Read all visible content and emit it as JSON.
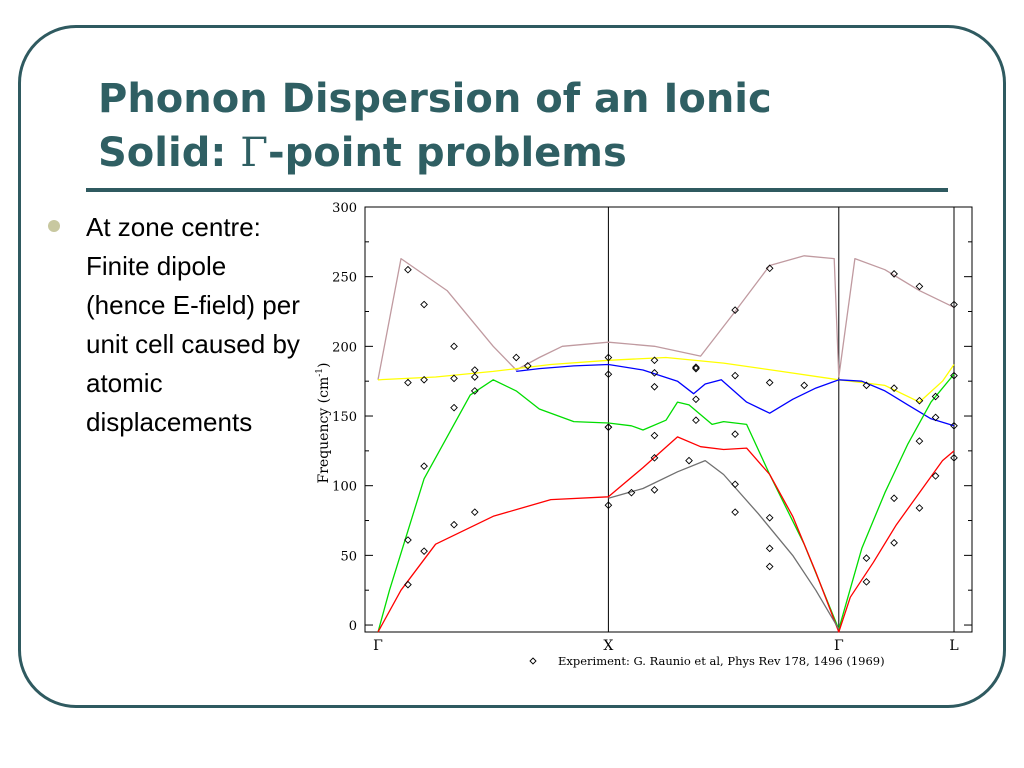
{
  "slide": {
    "title_line1": "Phonon Dispersion of an Ionic",
    "title_line2_pre": "Solid: ",
    "title_gamma": "Γ",
    "title_line2_post": "-point problems",
    "bullet": "At zone centre: Finite dipole (hence E-field) per unit cell caused by atomic displacements",
    "colors": {
      "title": "#2f5f63",
      "frame": "#2f5a60",
      "bullet_dot": "#c8c8a0"
    }
  },
  "chart_data": {
    "type": "line",
    "ylabel": "Frequency (cm",
    "ylabel_sup": "-1",
    "ylabel_close": ")",
    "ylim": [
      -5,
      300
    ],
    "yticks": [
      0,
      50,
      100,
      150,
      200,
      250,
      300
    ],
    "xlim": [
      0,
      2.5
    ],
    "kpoints": [
      {
        "label": "Γ",
        "x": 0.0
      },
      {
        "label": "X",
        "x": 1.0
      },
      {
        "label": "Γ",
        "x": 2.0
      },
      {
        "label": "L",
        "x": 2.5
      }
    ],
    "caption": "Experiment: G. Raunio et al, Phys Rev 178, 1496 (1969)",
    "series": [
      {
        "color": "#c09aa0",
        "x": [
          0,
          0.1,
          0.3,
          0.5,
          0.6,
          0.7,
          0.8,
          1.0,
          1.2,
          1.4,
          1.55,
          1.7,
          1.85,
          1.98,
          2.0,
          2.07,
          2.2,
          2.35,
          2.5
        ],
        "y": [
          176,
          263,
          240,
          200,
          183,
          192,
          200,
          203,
          200,
          193,
          225,
          258,
          265,
          263,
          178,
          263,
          255,
          240,
          228
        ]
      },
      {
        "color": "#ffff00",
        "x": [
          0,
          0.25,
          0.5,
          0.75,
          1.0,
          1.25,
          1.5,
          1.75,
          2.0,
          2.2,
          2.35,
          2.45,
          2.5
        ],
        "y": [
          176,
          178,
          182,
          187,
          190,
          192,
          188,
          182,
          176,
          172,
          160,
          175,
          187
        ]
      },
      {
        "color": "#0000ff",
        "x": [
          0.6,
          0.7,
          0.85,
          1.0,
          1.15,
          1.3,
          1.37,
          1.42,
          1.49,
          1.6,
          1.7,
          1.8,
          1.9,
          2.0,
          2.1,
          2.2,
          2.3,
          2.4,
          2.5
        ],
        "y": [
          182,
          184,
          186,
          187,
          183,
          175,
          166,
          173,
          176,
          160,
          152,
          162,
          170,
          176,
          175,
          168,
          158,
          148,
          143
        ]
      },
      {
        "color": "#00dd00",
        "x": [
          0,
          0.05,
          0.2,
          0.4,
          0.5,
          0.6,
          0.7,
          0.85,
          1.0,
          1.1,
          1.15,
          1.25,
          1.3,
          1.35,
          1.45,
          1.5,
          1.6,
          1.7,
          1.85,
          2.0,
          2.1,
          2.2,
          2.3,
          2.4,
          2.5
        ],
        "y": [
          -5,
          25,
          105,
          165,
          176,
          168,
          155,
          146,
          145,
          143,
          140,
          147,
          160,
          158,
          144,
          146,
          144,
          108,
          58,
          -3,
          55,
          95,
          130,
          160,
          180
        ]
      },
      {
        "color": "#ff0000",
        "x": [
          0,
          0.1,
          0.25,
          0.5,
          0.75,
          1.0,
          1.15,
          1.3,
          1.4,
          1.5,
          1.6,
          1.7,
          1.8,
          1.9,
          2.0,
          2.05,
          2.15,
          2.25,
          2.35,
          2.45,
          2.5
        ],
        "y": [
          -5,
          25,
          58,
          78,
          90,
          92,
          113,
          135,
          128,
          126,
          127,
          108,
          78,
          38,
          -5,
          20,
          45,
          72,
          95,
          118,
          125
        ]
      },
      {
        "color": "#707070",
        "x": [
          1.0,
          1.15,
          1.3,
          1.42,
          1.5,
          1.65,
          1.8,
          1.9,
          2.0
        ],
        "y": [
          91,
          98,
          110,
          118,
          108,
          80,
          50,
          25,
          -3
        ]
      }
    ],
    "experiment_points": [
      [
        0.13,
        255
      ],
      [
        0.2,
        230
      ],
      [
        0.33,
        200
      ],
      [
        0.42,
        183
      ],
      [
        0.6,
        192
      ],
      [
        0.65,
        186
      ],
      [
        0.13,
        174
      ],
      [
        0.2,
        176
      ],
      [
        0.33,
        177
      ],
      [
        0.42,
        178
      ],
      [
        0.13,
        61
      ],
      [
        0.2,
        114
      ],
      [
        0.33,
        156
      ],
      [
        0.42,
        168
      ],
      [
        0.13,
        29
      ],
      [
        0.2,
        53
      ],
      [
        0.33,
        72
      ],
      [
        0.42,
        81
      ],
      [
        1.0,
        192
      ],
      [
        1.0,
        180
      ],
      [
        1.0,
        142
      ],
      [
        1.0,
        142
      ],
      [
        1.0,
        86
      ],
      [
        1.1,
        95
      ],
      [
        1.2,
        97
      ],
      [
        1.2,
        120
      ],
      [
        1.2,
        136
      ],
      [
        1.2,
        171
      ],
      [
        1.2,
        181
      ],
      [
        1.2,
        190
      ],
      [
        1.35,
        118
      ],
      [
        1.38,
        147
      ],
      [
        1.38,
        162
      ],
      [
        1.38,
        184
      ],
      [
        1.38,
        185
      ],
      [
        1.55,
        226
      ],
      [
        1.55,
        179
      ],
      [
        1.55,
        137
      ],
      [
        1.55,
        101
      ],
      [
        1.55,
        81
      ],
      [
        1.7,
        256
      ],
      [
        1.7,
        174
      ],
      [
        1.7,
        77
      ],
      [
        1.7,
        55
      ],
      [
        1.7,
        42
      ],
      [
        1.85,
        172
      ],
      [
        2.12,
        172
      ],
      [
        2.12,
        48
      ],
      [
        2.12,
        31
      ],
      [
        2.24,
        252
      ],
      [
        2.24,
        170
      ],
      [
        2.24,
        91
      ],
      [
        2.24,
        59
      ],
      [
        2.35,
        243
      ],
      [
        2.35,
        161
      ],
      [
        2.35,
        132
      ],
      [
        2.35,
        84
      ],
      [
        2.42,
        164
      ],
      [
        2.42,
        149
      ],
      [
        2.42,
        107
      ],
      [
        2.5,
        230
      ],
      [
        2.5,
        179
      ],
      [
        2.5,
        143
      ],
      [
        2.5,
        120
      ]
    ]
  }
}
